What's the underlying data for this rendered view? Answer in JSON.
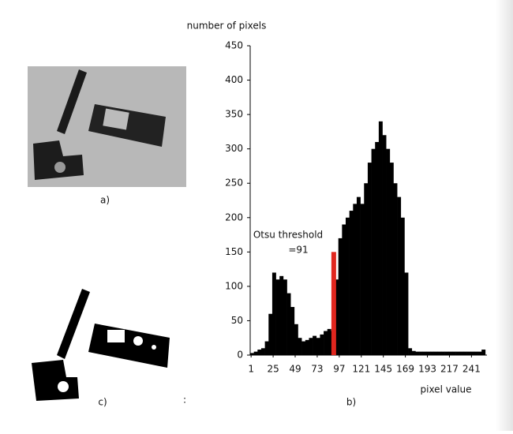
{
  "chart_data": {
    "type": "histogram",
    "ylabel": "number of pixels",
    "xlabel": "pixel value",
    "panel_labels": [
      "a)",
      "b)",
      "c)"
    ],
    "stray_mark": ":",
    "color": "#000000",
    "bins": [
      0,
      4,
      8,
      12,
      16,
      20,
      24,
      28,
      32,
      36,
      40,
      44,
      48,
      52,
      56,
      60,
      64,
      68,
      72,
      76,
      80,
      84,
      88,
      92,
      96,
      100,
      104,
      108,
      112,
      116,
      120,
      124,
      128,
      132,
      136,
      140,
      144,
      148,
      152,
      156,
      160,
      164,
      168,
      172,
      176,
      180,
      184,
      188,
      192,
      196,
      200,
      204,
      208,
      212,
      216,
      220,
      224,
      228,
      232,
      236,
      240,
      244,
      248,
      252,
      256
    ],
    "counts": [
      3,
      5,
      8,
      10,
      20,
      60,
      120,
      110,
      115,
      110,
      90,
      70,
      45,
      25,
      20,
      22,
      25,
      28,
      25,
      30,
      35,
      38,
      35,
      110,
      170,
      190,
      200,
      210,
      220,
      230,
      220,
      250,
      280,
      300,
      310,
      340,
      320,
      300,
      280,
      250,
      230,
      200,
      120,
      10,
      6,
      5,
      5,
      5,
      5,
      5,
      5,
      5,
      5,
      5,
      5,
      5,
      5,
      5,
      5,
      5,
      5,
      5,
      5,
      8
    ],
    "xlim": [
      0,
      257
    ],
    "ylim": [
      0,
      450
    ],
    "xticks": [
      1,
      25,
      49,
      73,
      97,
      121,
      145,
      169,
      193,
      217,
      241
    ],
    "yticks": [
      0,
      50,
      100,
      150,
      200,
      250,
      300,
      350,
      400,
      450
    ],
    "threshold": {
      "value": 91,
      "height": 150,
      "color": "#e0261e",
      "label": [
        "Otsu threshold",
        "=91"
      ]
    }
  }
}
